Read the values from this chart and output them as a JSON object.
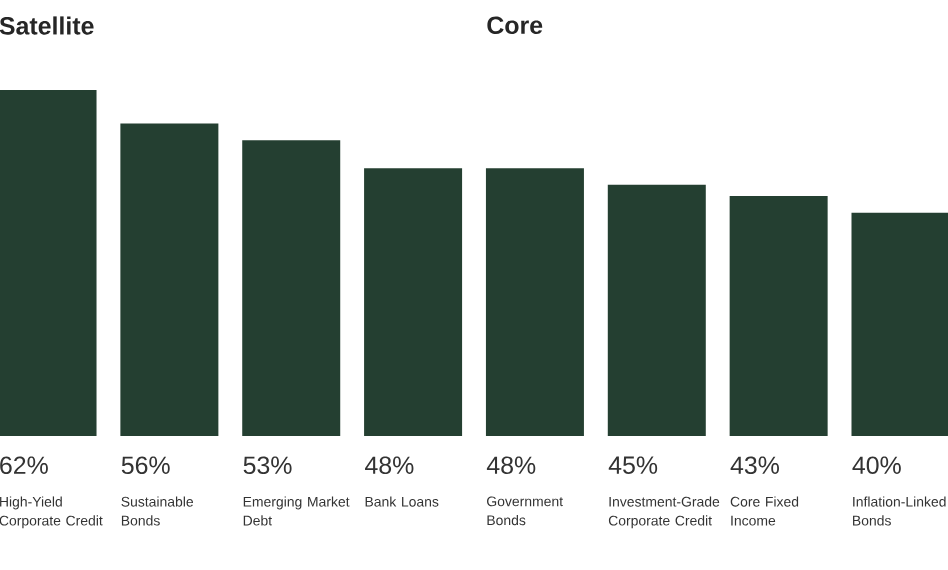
{
  "chart_data": {
    "type": "bar",
    "categories": [
      "High-Yield Corporate Credit",
      "Sustainable Bonds",
      "Emerging Market Debt",
      "Bank Loans",
      "Government Bonds",
      "Investment-Grade Corporate Credit",
      "Core Fixed Income",
      "Inflation-Linked Bonds"
    ],
    "values": [
      62,
      56,
      53,
      48,
      48,
      45,
      43,
      40
    ],
    "value_labels": [
      "62%",
      "56%",
      "53%",
      "48%",
      "48%",
      "45%",
      "43%",
      "40%"
    ],
    "color": "#243f31",
    "annotations": [
      "Satellite",
      "Core"
    ]
  }
}
